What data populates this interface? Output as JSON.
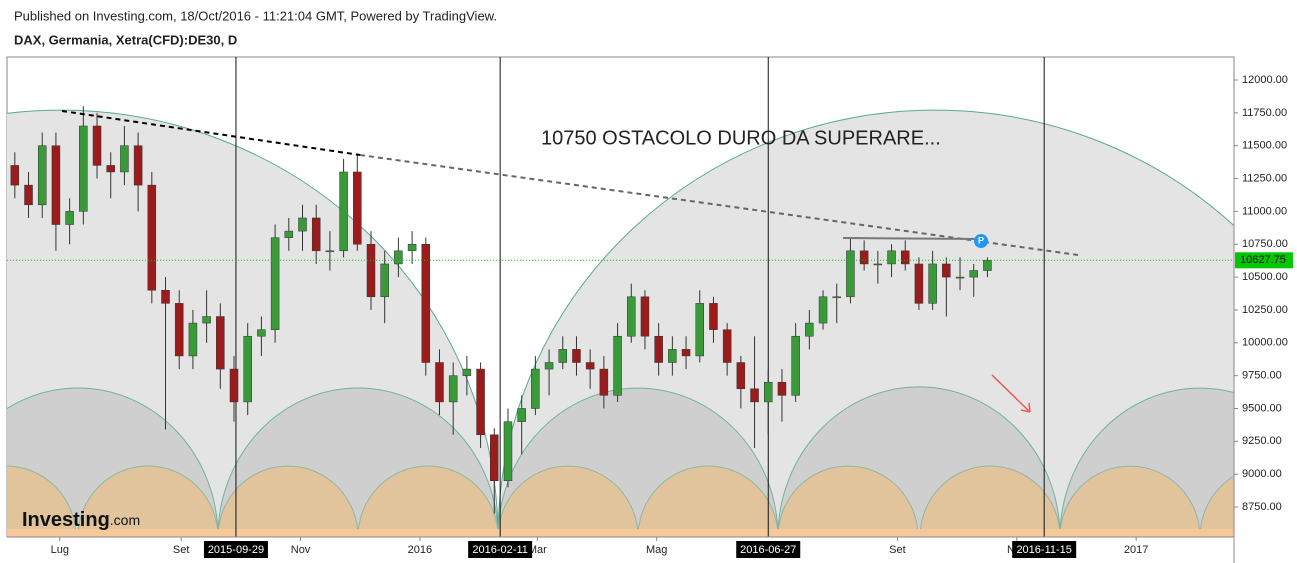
{
  "header": {
    "published": "Published on Investing.com, 18/Oct/2016 - 11:21:04 GMT, Powered by TradingView.",
    "symbol": "DAX, Germania, Xetra(CFD):DE30, D"
  },
  "logo": {
    "brand": "Investing",
    "suffix": ".com"
  },
  "chart_data": {
    "type": "candlestick",
    "annotation": "10750 OSTACOLO DURO DA SUPERARE...",
    "marker_label": "P",
    "up_color": "#3a9a3a",
    "down_color": "#9b1c1c",
    "x": [
      "2015-06-08",
      "2015-06-15",
      "2015-06-22",
      "2015-06-29",
      "2015-07-06",
      "2015-07-13",
      "2015-07-20",
      "2015-07-27",
      "2015-08-03",
      "2015-08-10",
      "2015-08-17",
      "2015-08-24",
      "2015-08-31",
      "2015-09-07",
      "2015-09-14",
      "2015-09-21",
      "2015-09-28",
      "2015-10-05",
      "2015-10-12",
      "2015-10-19",
      "2015-10-26",
      "2015-11-02",
      "2015-11-09",
      "2015-11-16",
      "2015-11-23",
      "2015-11-30",
      "2015-12-07",
      "2015-12-14",
      "2015-12-21",
      "2015-12-28",
      "2016-01-04",
      "2016-01-11",
      "2016-01-18",
      "2016-01-25",
      "2016-02-01",
      "2016-02-08",
      "2016-02-15",
      "2016-02-22",
      "2016-02-29",
      "2016-03-07",
      "2016-03-14",
      "2016-03-21",
      "2016-03-28",
      "2016-04-04",
      "2016-04-11",
      "2016-04-18",
      "2016-04-25",
      "2016-05-02",
      "2016-05-09",
      "2016-05-16",
      "2016-05-23",
      "2016-05-30",
      "2016-06-06",
      "2016-06-13",
      "2016-06-20",
      "2016-06-27",
      "2016-07-04",
      "2016-07-11",
      "2016-07-18",
      "2016-07-25",
      "2016-08-01",
      "2016-08-08",
      "2016-08-15",
      "2016-08-22",
      "2016-08-29",
      "2016-09-05",
      "2016-09-12",
      "2016-09-19",
      "2016-09-26",
      "2016-10-03",
      "2016-10-10",
      "2016-10-17"
    ],
    "open": [
      11350,
      11200,
      11050,
      11500,
      10900,
      11000,
      11650,
      11350,
      11300,
      11500,
      11200,
      10400,
      10300,
      9900,
      10150,
      10200,
      9800,
      9550,
      10050,
      10100,
      10800,
      10850,
      10950,
      10700,
      10700,
      11300,
      10750,
      10350,
      10600,
      10700,
      10750,
      9850,
      9550,
      9750,
      9800,
      9300,
      8950,
      9400,
      9500,
      9800,
      9850,
      9950,
      9850,
      9800,
      9600,
      10050,
      10350,
      10050,
      9850,
      9950,
      9900,
      10300,
      10100,
      9850,
      9650,
      9550,
      9700,
      9600,
      10050,
      10150,
      10350,
      10350,
      10700,
      10600,
      10600,
      10700,
      10600,
      10300,
      10600,
      10500,
      10500,
      10550
    ],
    "high": [
      11450,
      11300,
      11600,
      11600,
      11100,
      11800,
      11750,
      11450,
      11650,
      11600,
      11300,
      10500,
      10400,
      10250,
      10400,
      10300,
      9900,
      10150,
      10200,
      10900,
      10950,
      11050,
      11050,
      10850,
      11400,
      11430,
      10850,
      10700,
      10800,
      10850,
      10800,
      9950,
      9850,
      9900,
      9850,
      9350,
      9500,
      9600,
      9900,
      9950,
      10050,
      10050,
      9950,
      9900,
      10150,
      10450,
      10400,
      10150,
      10050,
      10050,
      10400,
      10350,
      10150,
      9900,
      10050,
      9800,
      9800,
      10150,
      10250,
      10400,
      10450,
      10800,
      10780,
      10700,
      10750,
      10780,
      10650,
      10700,
      10650,
      10650,
      10600,
      10650
    ],
    "low": [
      11100,
      10950,
      10950,
      10700,
      10750,
      10900,
      11250,
      11100,
      11200,
      11000,
      10300,
      9340,
      9800,
      9800,
      10000,
      9650,
      9400,
      9450,
      9900,
      10000,
      10700,
      10700,
      10600,
      10550,
      10650,
      10700,
      10250,
      10150,
      10500,
      10600,
      9750,
      9450,
      9300,
      9600,
      9200,
      8700,
      8900,
      9150,
      9450,
      9600,
      9800,
      9750,
      9650,
      9500,
      9550,
      10000,
      9950,
      9750,
      9750,
      9800,
      9850,
      10000,
      9750,
      9500,
      9200,
      9300,
      9400,
      9550,
      9950,
      10100,
      10150,
      10300,
      10550,
      10450,
      10500,
      10550,
      10250,
      10250,
      10200,
      10400,
      10350,
      10500
    ],
    "close": [
      11200,
      11050,
      11500,
      10900,
      11000,
      11650,
      11350,
      11300,
      11500,
      11200,
      10400,
      10300,
      9900,
      10150,
      10200,
      9800,
      9550,
      10050,
      10100,
      10800,
      10850,
      10950,
      10700,
      10700,
      11300,
      10750,
      10350,
      10600,
      10700,
      10750,
      9850,
      9550,
      9750,
      9800,
      9300,
      8950,
      9400,
      9500,
      9800,
      9850,
      9950,
      9850,
      9800,
      9600,
      10050,
      10350,
      10050,
      9850,
      9950,
      9900,
      10300,
      10100,
      9850,
      9650,
      9550,
      9700,
      9600,
      10050,
      10150,
      10350,
      10350,
      10700,
      10600,
      10600,
      10700,
      10600,
      10300,
      10600,
      10500,
      10500,
      10550,
      10627.75
    ],
    "cycle_dates": [
      "2015-09-29",
      "2016-02-11",
      "2016-06-27",
      "2016-11-15"
    ],
    "xlim": [
      "2015-06-04",
      "2017-02-20"
    ],
    "xticks": [
      {
        "value": "2015-07-01",
        "label": "Lug"
      },
      {
        "value": "2015-09-01",
        "label": "Set"
      },
      {
        "value": "2015-11-01",
        "label": "Nov"
      },
      {
        "value": "2016-01-01",
        "label": "2016"
      },
      {
        "value": "2016-03-01",
        "label": "Mar"
      },
      {
        "value": "2016-05-01",
        "label": "Mag"
      },
      {
        "value": "2016-09-01",
        "label": "Set"
      },
      {
        "value": "2016-11-01",
        "label": "Nov"
      },
      {
        "value": "2017-01-01",
        "label": "2017"
      }
    ],
    "ylim": [
      8522,
      12175
    ],
    "yticks": [
      {
        "value": 8750,
        "label": "8750.00"
      },
      {
        "value": 9000,
        "label": "9000.00"
      },
      {
        "value": 9250,
        "label": "9250.00"
      },
      {
        "value": 9500,
        "label": "9500.00"
      },
      {
        "value": 9750,
        "label": "9750.00"
      },
      {
        "value": 10000,
        "label": "10000.00"
      },
      {
        "value": 10250,
        "label": "10250.00"
      },
      {
        "value": 10500,
        "label": "10500.00"
      },
      {
        "value": 10750,
        "label": "10750.00"
      },
      {
        "value": 11000,
        "label": "11000.00"
      },
      {
        "value": 11250,
        "label": "11250.00"
      },
      {
        "value": 11500,
        "label": "11500.00"
      },
      {
        "value": 11750,
        "label": "11750.00"
      },
      {
        "value": 12000,
        "label": "12000.00"
      }
    ]
  }
}
